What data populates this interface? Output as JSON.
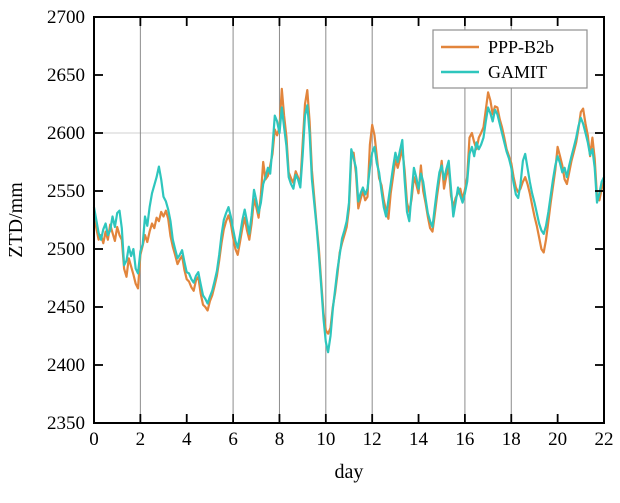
{
  "figure": {
    "xlabel": "day",
    "ylabel": "ZTD/mm"
  },
  "legend": {
    "items": [
      {
        "label": "PPP-B2b",
        "color": "#E2853C"
      },
      {
        "label": "GAMIT",
        "color": "#2EC6BD"
      }
    ]
  },
  "chart_data": {
    "type": "line",
    "title": "",
    "xlabel": "day",
    "ylabel": "ZTD/mm",
    "xlim": [
      0,
      22
    ],
    "ylim": [
      2350,
      2700
    ],
    "xticks": [
      0,
      2,
      4,
      6,
      8,
      10,
      12,
      14,
      16,
      18,
      20,
      22
    ],
    "yticks": [
      2350,
      2400,
      2450,
      2500,
      2550,
      2600,
      2650,
      2700
    ],
    "grid_x_days": [
      2,
      6,
      8,
      10,
      12,
      16,
      18
    ],
    "grid_y_values": [
      2600
    ],
    "legend_position": "top-right",
    "x_start": 0,
    "x_step": 0.1,
    "series": [
      {
        "name": "PPP-B2b",
        "color": "#E2853C",
        "values": [
          2530,
          2518,
          2508,
          2512,
          2505,
          2515,
          2508,
          2521,
          2514,
          2507,
          2519,
          2512,
          2508,
          2483,
          2476,
          2492,
          2485,
          2478,
          2470,
          2466,
          2495,
          2503,
          2512,
          2506,
          2515,
          2522,
          2518,
          2527,
          2524,
          2532,
          2528,
          2533,
          2526,
          2511,
          2502,
          2495,
          2487,
          2491,
          2494,
          2482,
          2474,
          2472,
          2467,
          2464,
          2473,
          2476,
          2462,
          2452,
          2450,
          2447,
          2455,
          2460,
          2468,
          2477,
          2490,
          2505,
          2517,
          2524,
          2529,
          2522,
          2510,
          2500,
          2495,
          2506,
          2518,
          2527,
          2516,
          2508,
          2522,
          2543,
          2536,
          2527,
          2547,
          2575,
          2560,
          2563,
          2572,
          2582,
          2603,
          2598,
          2605,
          2638,
          2615,
          2597,
          2566,
          2561,
          2557,
          2567,
          2562,
          2556,
          2590,
          2625,
          2637,
          2610,
          2568,
          2545,
          2522,
          2500,
          2472,
          2445,
          2430,
          2427,
          2432,
          2450,
          2462,
          2478,
          2497,
          2505,
          2512,
          2519,
          2535,
          2580,
          2583,
          2565,
          2535,
          2543,
          2550,
          2542,
          2545,
          2590,
          2607,
          2598,
          2580,
          2561,
          2555,
          2542,
          2533,
          2526,
          2548,
          2562,
          2577,
          2570,
          2578,
          2586,
          2568,
          2540,
          2532,
          2543,
          2562,
          2556,
          2548,
          2572,
          2550,
          2540,
          2528,
          2518,
          2515,
          2530,
          2546,
          2560,
          2576,
          2552,
          2563,
          2570,
          2546,
          2536,
          2544,
          2548,
          2552,
          2543,
          2551,
          2562,
          2596,
          2600,
          2592,
          2586,
          2596,
          2600,
          2605,
          2620,
          2635,
          2628,
          2616,
          2623,
          2622,
          2612,
          2605,
          2596,
          2586,
          2580,
          2574,
          2562,
          2553,
          2549,
          2552,
          2558,
          2562,
          2556,
          2548,
          2538,
          2528,
          2520,
          2510,
          2500,
          2497,
          2508,
          2524,
          2540,
          2554,
          2568,
          2588,
          2580,
          2572,
          2560,
          2556,
          2566,
          2576,
          2584,
          2592,
          2604,
          2618,
          2621,
          2608,
          2598,
          2580,
          2596,
          2578,
          2545,
          2542,
          2552,
          2558
        ]
      },
      {
        "name": "GAMIT",
        "color": "#2EC6BD",
        "values": [
          2536,
          2525,
          2514,
          2508,
          2517,
          2522,
          2512,
          2516,
          2528,
          2519,
          2531,
          2533,
          2518,
          2486,
          2490,
          2502,
          2494,
          2500,
          2483,
          2479,
          2498,
          2504,
          2528,
          2520,
          2536,
          2548,
          2555,
          2562,
          2571,
          2560,
          2545,
          2541,
          2534,
          2524,
          2508,
          2500,
          2492,
          2495,
          2499,
          2489,
          2480,
          2479,
          2474,
          2471,
          2477,
          2480,
          2470,
          2460,
          2457,
          2453,
          2459,
          2464,
          2472,
          2481,
          2495,
          2512,
          2525,
          2531,
          2536,
          2528,
          2517,
          2507,
          2501,
          2512,
          2525,
          2534,
          2524,
          2513,
          2529,
          2551,
          2542,
          2531,
          2540,
          2556,
          2562,
          2570,
          2565,
          2588,
          2615,
          2610,
          2600,
          2622,
          2605,
          2589,
          2562,
          2556,
          2552,
          2564,
          2560,
          2553,
          2580,
          2615,
          2624,
          2600,
          2560,
          2540,
          2520,
          2495,
          2468,
          2440,
          2420,
          2411,
          2425,
          2448,
          2465,
          2482,
          2495,
          2509,
          2516,
          2524,
          2540,
          2586,
          2578,
          2570,
          2541,
          2548,
          2553,
          2547,
          2552,
          2570,
          2583,
          2588,
          2574,
          2566,
          2550,
          2536,
          2528,
          2542,
          2556,
          2570,
          2583,
          2575,
          2585,
          2594,
          2560,
          2532,
          2524,
          2548,
          2570,
          2562,
          2552,
          2565,
          2558,
          2544,
          2531,
          2524,
          2519,
          2536,
          2552,
          2566,
          2572,
          2560,
          2569,
          2576,
          2552,
          2528,
          2540,
          2553,
          2546,
          2540,
          2548,
          2558,
          2582,
          2588,
          2580,
          2592,
          2586,
          2590,
          2596,
          2610,
          2622,
          2617,
          2610,
          2620,
          2616,
          2608,
          2600,
          2592,
          2584,
          2578,
          2570,
          2557,
          2547,
          2544,
          2556,
          2576,
          2582,
          2570,
          2558,
          2548,
          2540,
          2531,
          2522,
          2516,
          2513,
          2520,
          2532,
          2546,
          2560,
          2572,
          2580,
          2574,
          2566,
          2570,
          2562,
          2572,
          2580,
          2588,
          2596,
          2606,
          2613,
          2608,
          2600,
          2592,
          2581,
          2586,
          2570,
          2540,
          2548,
          2558,
          2562
        ]
      }
    ]
  }
}
